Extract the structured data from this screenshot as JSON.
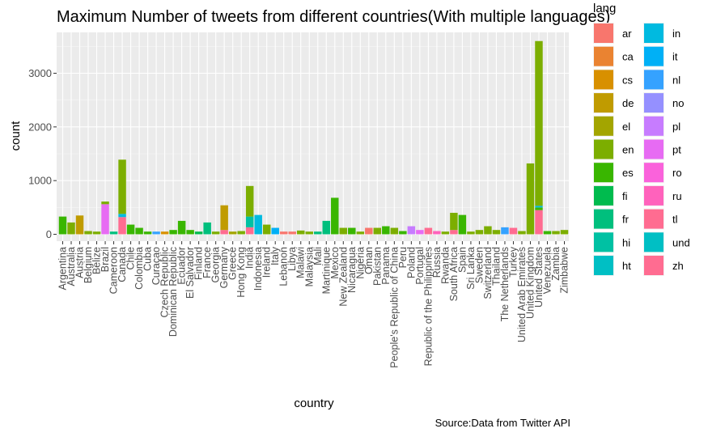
{
  "chart_data": {
    "type": "bar",
    "stacked": true,
    "title": "Maximum Number of tweets from different countries(With multiple languages)",
    "xlabel": "country",
    "ylabel": "count",
    "caption": "Source:Data from Twitter API",
    "ylim": [
      0,
      3600
    ],
    "yticks": [
      0,
      1000,
      2000,
      3000
    ],
    "legend": {
      "title": "lang",
      "placement": "right",
      "entries": [
        {
          "name": "ar",
          "color": "#F8766D"
        },
        {
          "name": "ca",
          "color": "#EA8331"
        },
        {
          "name": "cs",
          "color": "#D89000"
        },
        {
          "name": "de",
          "color": "#C09B00"
        },
        {
          "name": "el",
          "color": "#A3A500"
        },
        {
          "name": "en",
          "color": "#7CAE00"
        },
        {
          "name": "es",
          "color": "#39B600"
        },
        {
          "name": "fi",
          "color": "#00BB4E"
        },
        {
          "name": "fr",
          "color": "#00BF7D"
        },
        {
          "name": "hi",
          "color": "#00C1A3"
        },
        {
          "name": "ht",
          "color": "#00BFC4"
        },
        {
          "name": "in",
          "color": "#00BAE0"
        },
        {
          "name": "it",
          "color": "#00B0F6"
        },
        {
          "name": "nl",
          "color": "#35A2FF"
        },
        {
          "name": "no",
          "color": "#9590FF"
        },
        {
          "name": "pl",
          "color": "#C77CFF"
        },
        {
          "name": "pt",
          "color": "#E76BF3"
        },
        {
          "name": "ro",
          "color": "#FA62DB"
        },
        {
          "name": "ru",
          "color": "#FF62BC"
        },
        {
          "name": "tl",
          "color": "#FF6C91"
        },
        {
          "name": "und",
          "color": "#00BFC4"
        },
        {
          "name": "zh",
          "color": "#FF6C91"
        }
      ]
    },
    "categories": [
      {
        "country": "Argentina",
        "segments": [
          {
            "lang": "es",
            "value": 330
          }
        ]
      },
      {
        "country": "Australia",
        "segments": [
          {
            "lang": "en",
            "value": 220
          }
        ]
      },
      {
        "country": "Austria",
        "segments": [
          {
            "lang": "de",
            "value": 350
          }
        ]
      },
      {
        "country": "Belgium",
        "segments": [
          {
            "lang": "en",
            "value": 60
          }
        ]
      },
      {
        "country": "Belize",
        "segments": [
          {
            "lang": "en",
            "value": 50
          }
        ]
      },
      {
        "country": "Brazil",
        "segments": [
          {
            "lang": "pt",
            "value": 560
          },
          {
            "lang": "en",
            "value": 50
          }
        ]
      },
      {
        "country": "Cameroon",
        "segments": [
          {
            "lang": "fr",
            "value": 50
          }
        ]
      },
      {
        "country": "Canada",
        "segments": [
          {
            "lang": "tl",
            "value": 320
          },
          {
            "lang": "in",
            "value": 60
          },
          {
            "lang": "en",
            "value": 1010
          }
        ]
      },
      {
        "country": "Chile",
        "segments": [
          {
            "lang": "es",
            "value": 180
          }
        ]
      },
      {
        "country": "Colombia",
        "segments": [
          {
            "lang": "es",
            "value": 120
          }
        ]
      },
      {
        "country": "Cuba",
        "segments": [
          {
            "lang": "es",
            "value": 50
          }
        ]
      },
      {
        "country": "Curaçao",
        "segments": [
          {
            "lang": "nl",
            "value": 50
          }
        ]
      },
      {
        "country": "Czech Republic",
        "segments": [
          {
            "lang": "cs",
            "value": 50
          }
        ]
      },
      {
        "country": "Dominican Republic",
        "segments": [
          {
            "lang": "es",
            "value": 80
          }
        ]
      },
      {
        "country": "Ecuador",
        "segments": [
          {
            "lang": "es",
            "value": 250
          }
        ]
      },
      {
        "country": "El Salvador",
        "segments": [
          {
            "lang": "es",
            "value": 80
          }
        ]
      },
      {
        "country": "Finland",
        "segments": [
          {
            "lang": "fi",
            "value": 50
          }
        ]
      },
      {
        "country": "France",
        "segments": [
          {
            "lang": "fr",
            "value": 220
          }
        ]
      },
      {
        "country": "Georgia",
        "segments": [
          {
            "lang": "en",
            "value": 50
          }
        ]
      },
      {
        "country": "Germany",
        "segments": [
          {
            "lang": "tl",
            "value": 80
          },
          {
            "lang": "de",
            "value": 460
          }
        ]
      },
      {
        "country": "Greece",
        "segments": [
          {
            "lang": "el",
            "value": 50
          }
        ]
      },
      {
        "country": "Hong Kong",
        "segments": [
          {
            "lang": "en",
            "value": 60
          }
        ]
      },
      {
        "country": "India",
        "segments": [
          {
            "lang": "tl",
            "value": 130
          },
          {
            "lang": "hi",
            "value": 200
          },
          {
            "lang": "en",
            "value": 570
          }
        ]
      },
      {
        "country": "Indonesia",
        "segments": [
          {
            "lang": "in",
            "value": 360
          }
        ]
      },
      {
        "country": "Ireland",
        "segments": [
          {
            "lang": "en",
            "value": 180
          }
        ]
      },
      {
        "country": "Italy",
        "segments": [
          {
            "lang": "it",
            "value": 120
          }
        ]
      },
      {
        "country": "Lebanon",
        "segments": [
          {
            "lang": "ar",
            "value": 50
          }
        ]
      },
      {
        "country": "Libya",
        "segments": [
          {
            "lang": "ar",
            "value": 50
          }
        ]
      },
      {
        "country": "Malawi",
        "segments": [
          {
            "lang": "en",
            "value": 70
          }
        ]
      },
      {
        "country": "Malaysia",
        "segments": [
          {
            "lang": "en",
            "value": 50
          }
        ]
      },
      {
        "country": "Mali",
        "segments": [
          {
            "lang": "fr",
            "value": 50
          }
        ]
      },
      {
        "country": "Martinique",
        "segments": [
          {
            "lang": "fr",
            "value": 250
          }
        ]
      },
      {
        "country": "Mexico",
        "segments": [
          {
            "lang": "es",
            "value": 680
          }
        ]
      },
      {
        "country": "New Zealand",
        "segments": [
          {
            "lang": "en",
            "value": 120
          }
        ]
      },
      {
        "country": "Nicaragua",
        "segments": [
          {
            "lang": "es",
            "value": 120
          }
        ]
      },
      {
        "country": "Nigeria",
        "segments": [
          {
            "lang": "en",
            "value": 50
          }
        ]
      },
      {
        "country": "Oman",
        "segments": [
          {
            "lang": "ar",
            "value": 120
          }
        ]
      },
      {
        "country": "Pakistan",
        "segments": [
          {
            "lang": "en",
            "value": 120
          }
        ]
      },
      {
        "country": "Panama",
        "segments": [
          {
            "lang": "es",
            "value": 150
          }
        ]
      },
      {
        "country": "People's Republic of China",
        "segments": [
          {
            "lang": "en",
            "value": 120
          }
        ]
      },
      {
        "country": "Peru",
        "segments": [
          {
            "lang": "es",
            "value": 60
          }
        ]
      },
      {
        "country": "Poland",
        "segments": [
          {
            "lang": "pl",
            "value": 150
          }
        ]
      },
      {
        "country": "Portugal",
        "segments": [
          {
            "lang": "pt",
            "value": 80
          }
        ]
      },
      {
        "country": "Republic of the Philippines",
        "segments": [
          {
            "lang": "tl",
            "value": 120
          }
        ]
      },
      {
        "country": "Russia",
        "segments": [
          {
            "lang": "ru",
            "value": 60
          }
        ]
      },
      {
        "country": "Rwanda",
        "segments": [
          {
            "lang": "en",
            "value": 50
          }
        ]
      },
      {
        "country": "South Africa",
        "segments": [
          {
            "lang": "tl",
            "value": 80
          },
          {
            "lang": "en",
            "value": 320
          }
        ]
      },
      {
        "country": "Spain",
        "segments": [
          {
            "lang": "es",
            "value": 360
          }
        ]
      },
      {
        "country": "Sri Lanka",
        "segments": [
          {
            "lang": "en",
            "value": 50
          }
        ]
      },
      {
        "country": "Sweden",
        "segments": [
          {
            "lang": "en",
            "value": 80
          }
        ]
      },
      {
        "country": "Switzerland",
        "segments": [
          {
            "lang": "en",
            "value": 150
          }
        ]
      },
      {
        "country": "Thailand",
        "segments": [
          {
            "lang": "en",
            "value": 80
          }
        ]
      },
      {
        "country": "The Netherlands",
        "segments": [
          {
            "lang": "nl",
            "value": 130
          }
        ]
      },
      {
        "country": "Turkey",
        "segments": [
          {
            "lang": "tl",
            "value": 120
          }
        ]
      },
      {
        "country": "United Arab Emirates",
        "segments": [
          {
            "lang": "en",
            "value": 60
          }
        ]
      },
      {
        "country": "United Kingdom",
        "segments": [
          {
            "lang": "en",
            "value": 1320
          }
        ]
      },
      {
        "country": "United States",
        "segments": [
          {
            "lang": "tl",
            "value": 450
          },
          {
            "lang": "es",
            "value": 50
          },
          {
            "lang": "in",
            "value": 30
          },
          {
            "lang": "en",
            "value": 3070
          }
        ]
      },
      {
        "country": "Venezuela",
        "segments": [
          {
            "lang": "es",
            "value": 60
          }
        ]
      },
      {
        "country": "Zambia",
        "segments": [
          {
            "lang": "en",
            "value": 60
          }
        ]
      },
      {
        "country": "Zimbabwe",
        "segments": [
          {
            "lang": "en",
            "value": 80
          }
        ]
      }
    ]
  }
}
